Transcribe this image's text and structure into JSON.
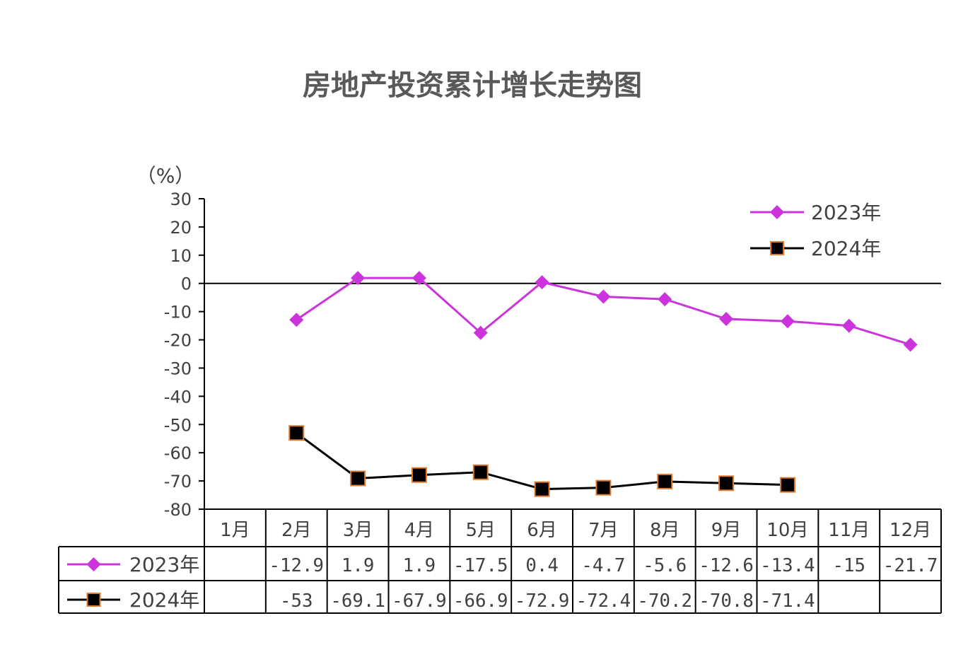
{
  "chart_data": {
    "type": "line",
    "title": "房地产投资累计增长走势图",
    "ylabel": "（%）",
    "ylim": [
      -80,
      30
    ],
    "yticks": [
      30,
      20,
      10,
      0,
      -10,
      -20,
      -30,
      -40,
      -50,
      -60,
      -70,
      -80
    ],
    "categories": [
      "1月",
      "2月",
      "3月",
      "4月",
      "5月",
      "6月",
      "7月",
      "8月",
      "9月",
      "10月",
      "11月",
      "12月"
    ],
    "legend_position": "top-right",
    "series": [
      {
        "name": "2023年",
        "color": "#CC33DD",
        "marker": "diamond",
        "values": [
          null,
          -12.9,
          1.9,
          1.9,
          -17.5,
          0.4,
          -4.7,
          -5.6,
          -12.6,
          -13.4,
          -15,
          -21.7
        ],
        "labels": [
          "",
          "-12.9",
          "1.9",
          "1.9",
          "-17.5",
          "0.4",
          "-4.7",
          "-5.6",
          "-12.6",
          "-13.4",
          "-15",
          "-21.7"
        ]
      },
      {
        "name": "2024年",
        "color": "#000000",
        "marker_edge": "#E07A2E",
        "marker": "square",
        "values": [
          null,
          -53,
          -69.1,
          -67.9,
          -66.9,
          -72.9,
          -72.4,
          -70.2,
          -70.8,
          -71.4,
          null,
          null
        ],
        "labels": [
          "",
          "-53",
          "-69.1",
          "-67.9",
          "-66.9",
          "-72.9",
          "-72.4",
          "-70.2",
          "-70.8",
          "-71.4",
          "",
          ""
        ]
      }
    ]
  }
}
